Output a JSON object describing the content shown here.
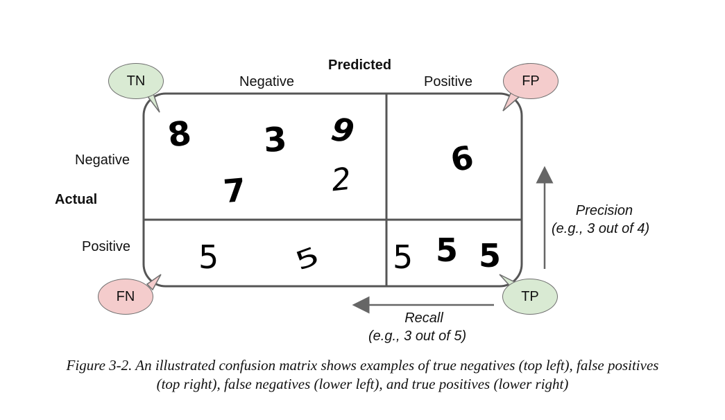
{
  "header": {
    "predicted": "Predicted",
    "actual": "Actual"
  },
  "columns": {
    "negative": "Negative",
    "positive": "Positive"
  },
  "rows": {
    "negative": "Negative",
    "positive": "Positive"
  },
  "cells": {
    "tn_digits": [
      "8",
      "3",
      "9",
      "7",
      "2"
    ],
    "fp_digits": [
      "6"
    ],
    "fn_digits": [
      "5",
      "5"
    ],
    "tp_digits": [
      "5",
      "5",
      "5"
    ]
  },
  "bubbles": {
    "tn": "TN",
    "fp": "FP",
    "fn": "FN",
    "tp": "TP"
  },
  "precision": {
    "label": "Precision",
    "example": "(e.g., 3 out of 4)"
  },
  "recall": {
    "label": "Recall",
    "example": "(e.g., 3 out of 5)"
  },
  "caption": {
    "line1": "Figure 3-2. An illustrated confusion matrix shows examples of true negatives (top left), false positives",
    "line2": "(top right), false negatives (lower left), and true positives (lower right)"
  },
  "colors": {
    "green_bubble": "#d9ead3",
    "red_bubble": "#f4cccc",
    "border": "#555555"
  }
}
